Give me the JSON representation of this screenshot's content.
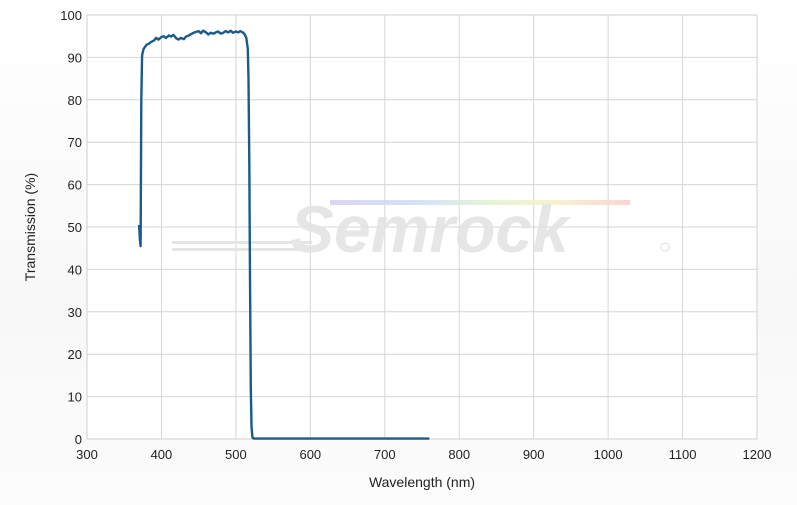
{
  "chart_data": {
    "type": "line",
    "title": "",
    "xlabel": "Wavelength (nm)",
    "ylabel": "Transmission (%)",
    "xlim": [
      300,
      1200
    ],
    "ylim": [
      0,
      100
    ],
    "xticks": [
      300,
      400,
      500,
      600,
      700,
      800,
      900,
      1000,
      1100,
      1200
    ],
    "yticks": [
      0,
      10,
      20,
      30,
      40,
      50,
      60,
      70,
      80,
      90,
      100
    ],
    "grid": true,
    "legend": "none",
    "line_color": "#1a5b8c",
    "watermark": "Semrock",
    "series": [
      {
        "x": [
          370,
          371,
          372,
          373,
          374,
          376,
          378,
          380,
          383,
          386,
          390,
          393,
          396,
          400,
          403,
          406,
          410,
          413,
          416,
          420,
          423,
          426,
          430,
          433,
          436,
          440,
          443,
          446,
          450,
          453,
          456,
          460,
          463,
          466,
          470,
          473,
          476,
          480,
          483,
          486,
          490,
          493,
          496,
          500,
          503,
          506,
          510,
          512,
          514,
          516,
          517,
          518,
          519,
          520,
          521,
          522,
          523,
          525,
          530,
          600,
          700,
          760
        ],
        "y": [
          50.5,
          47,
          45.5,
          80,
          90.5,
          92,
          92.5,
          93,
          93.2,
          93.6,
          94,
          94.6,
          94.2,
          94.8,
          95,
          94.6,
          95.2,
          94.9,
          95.3,
          94.5,
          94.2,
          94.6,
          94.3,
          94.9,
          95.1,
          95.5,
          95.8,
          96,
          96.2,
          95.7,
          96.3,
          95.9,
          95.4,
          95.8,
          95.6,
          95.9,
          96.1,
          95.6,
          95.8,
          96.2,
          95.9,
          96.3,
          95.8,
          96.1,
          95.9,
          96.2,
          95.8,
          95.4,
          94.6,
          92,
          85,
          65,
          38,
          12,
          3,
          0.6,
          0.2,
          0.1,
          0.1,
          0.1,
          0.1,
          0.1
        ]
      }
    ]
  }
}
